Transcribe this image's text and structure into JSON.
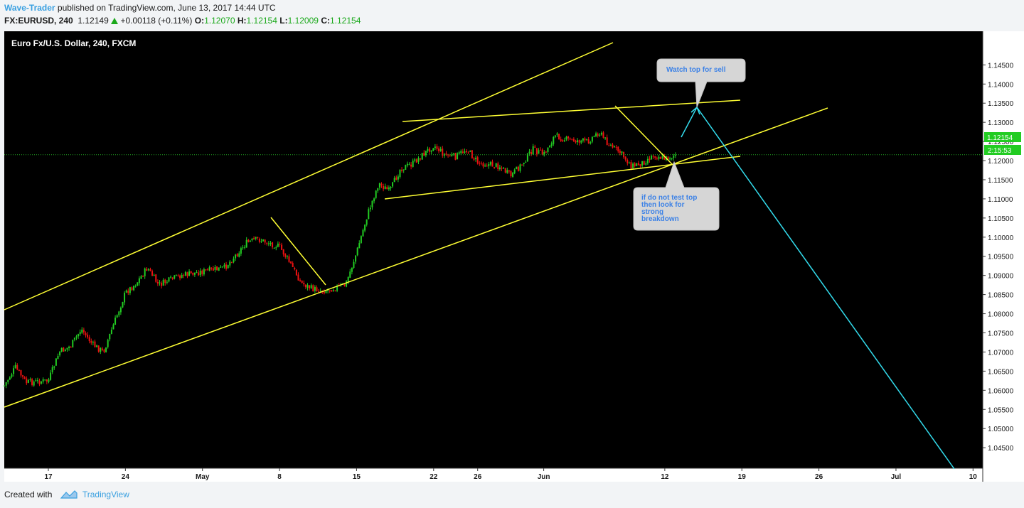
{
  "header": {
    "author": "Wave-Trader",
    "published_text": " published on TradingView.com, June 13, 2017 14:44 UTC"
  },
  "quote": {
    "symbol": "FX:EURUSD, 240",
    "last": "1.12149",
    "change": "+0.00118 (+0.11%)",
    "open_label": "O:",
    "open": "1.12070",
    "high_label": "H:",
    "high": "1.12154",
    "low_label": "L:",
    "low": "1.12009",
    "close_label": "C:",
    "close": "1.12154"
  },
  "footer": {
    "created_with": "Created with",
    "brand": "TradingView"
  },
  "colors": {
    "background": "#000000",
    "bull": "#22cc22",
    "bear": "#ee1111",
    "trendline": "#ffff33",
    "projection": "#33ddee",
    "price_line": "#22aa22"
  },
  "chart_data": {
    "type": "candlestick",
    "title": "Euro Fx/U.S. Dollar, 240, FXCM",
    "ylim": [
      1.0415,
      1.151
    ],
    "y_ticks": [
      "1.14500",
      "1.14000",
      "1.13500",
      "1.13000",
      "1.12500",
      "1.12000",
      "1.11500",
      "1.11000",
      "1.10500",
      "1.10000",
      "1.09500",
      "1.09000",
      "1.08500",
      "1.08000",
      "1.07500",
      "1.07000",
      "1.06500",
      "1.06000",
      "1.05500",
      "1.05000",
      "1.04500"
    ],
    "x_ticks": [
      {
        "label": "17",
        "date": "2017-04-17"
      },
      {
        "label": "24",
        "date": "2017-04-24"
      },
      {
        "label": "May",
        "date": "2017-05-01"
      },
      {
        "label": "8",
        "date": "2017-05-08"
      },
      {
        "label": "15",
        "date": "2017-05-15"
      },
      {
        "label": "22",
        "date": "2017-05-22"
      },
      {
        "label": "26",
        "date": "2017-05-26"
      },
      {
        "label": "Jun",
        "date": "2017-06-01"
      },
      {
        "label": "12",
        "date": "2017-06-12"
      },
      {
        "label": "19",
        "date": "2017-06-19"
      },
      {
        "label": "26",
        "date": "2017-06-26"
      },
      {
        "label": "Jul",
        "date": "2017-07-03"
      },
      {
        "label": "10",
        "date": "2017-07-10"
      }
    ],
    "grid": false,
    "last_price_label": "1.12154",
    "countdown_label": "2:15:53",
    "price_path": [
      {
        "date": "2017-04-13",
        "price": 1.0612
      },
      {
        "date": "2017-04-14",
        "price": 1.066
      },
      {
        "date": "2017-04-15",
        "price": 1.062
      },
      {
        "date": "2017-04-17",
        "price": 1.0625
      },
      {
        "date": "2017-04-18",
        "price": 1.07
      },
      {
        "date": "2017-04-19",
        "price": 1.0715
      },
      {
        "date": "2017-04-20",
        "price": 1.076
      },
      {
        "date": "2017-04-21",
        "price": 1.072
      },
      {
        "date": "2017-04-22",
        "price": 1.07
      },
      {
        "date": "2017-04-24",
        "price": 1.0855
      },
      {
        "date": "2017-04-25",
        "price": 1.088
      },
      {
        "date": "2017-04-26",
        "price": 1.092
      },
      {
        "date": "2017-04-27",
        "price": 1.0875
      },
      {
        "date": "2017-04-29",
        "price": 1.09
      },
      {
        "date": "2017-05-01",
        "price": 1.091
      },
      {
        "date": "2017-05-03",
        "price": 1.092
      },
      {
        "date": "2017-05-05",
        "price": 1.0985
      },
      {
        "date": "2017-05-06",
        "price": 1.0995
      },
      {
        "date": "2017-05-08",
        "price": 1.0975
      },
      {
        "date": "2017-05-09",
        "price": 1.093
      },
      {
        "date": "2017-05-10",
        "price": 1.088
      },
      {
        "date": "2017-05-11",
        "price": 1.0865
      },
      {
        "date": "2017-05-12",
        "price": 1.086
      },
      {
        "date": "2017-05-14",
        "price": 1.0875
      },
      {
        "date": "2017-05-15",
        "price": 1.096
      },
      {
        "date": "2017-05-16",
        "price": 1.106
      },
      {
        "date": "2017-05-17",
        "price": 1.114
      },
      {
        "date": "2017-05-18",
        "price": 1.112
      },
      {
        "date": "2017-05-19",
        "price": 1.118
      },
      {
        "date": "2017-05-20",
        "price": 1.119
      },
      {
        "date": "2017-05-22",
        "price": 1.124
      },
      {
        "date": "2017-05-23",
        "price": 1.1215
      },
      {
        "date": "2017-05-24",
        "price": 1.121
      },
      {
        "date": "2017-05-25",
        "price": 1.123
      },
      {
        "date": "2017-05-26",
        "price": 1.1195
      },
      {
        "date": "2017-05-28",
        "price": 1.1185
      },
      {
        "date": "2017-05-29",
        "price": 1.116
      },
      {
        "date": "2017-05-30",
        "price": 1.119
      },
      {
        "date": "2017-05-31",
        "price": 1.123
      },
      {
        "date": "2017-06-01",
        "price": 1.1215
      },
      {
        "date": "2017-06-02",
        "price": 1.1265
      },
      {
        "date": "2017-06-03",
        "price": 1.1255
      },
      {
        "date": "2017-06-05",
        "price": 1.125
      },
      {
        "date": "2017-06-06",
        "price": 1.1275
      },
      {
        "date": "2017-06-07",
        "price": 1.124
      },
      {
        "date": "2017-06-08",
        "price": 1.122
      },
      {
        "date": "2017-06-09",
        "price": 1.1185
      },
      {
        "date": "2017-06-10",
        "price": 1.1195
      },
      {
        "date": "2017-06-11",
        "price": 1.1215
      },
      {
        "date": "2017-06-12",
        "price": 1.1205
      },
      {
        "date": "2017-06-13",
        "price": 1.1215
      }
    ]
  },
  "annotations": [
    {
      "id": "watch",
      "lines": [
        "Watch top for sell"
      ]
    },
    {
      "id": "breakdown",
      "lines": [
        "if do not test top",
        "then look for",
        "strong",
        "breakdown"
      ]
    }
  ]
}
